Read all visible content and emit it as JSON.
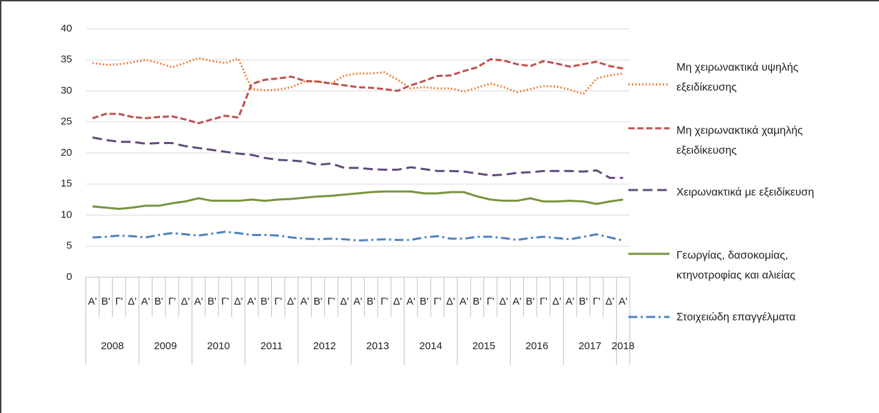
{
  "chart_data": {
    "type": "line",
    "categories": [
      "Α'",
      "Β'",
      "Γ'",
      "Δ'",
      "Α'",
      "Β'",
      "Γ'",
      "Δ'",
      "Α'",
      "Β'",
      "Γ'",
      "Δ'",
      "Α'",
      "Β'",
      "Γ'",
      "Δ'",
      "Α'",
      "Β'",
      "Γ'",
      "Δ'",
      "Α'",
      "Β'",
      "Γ'",
      "Δ'",
      "Α'",
      "Β'",
      "Γ'",
      "Δ'",
      "Α'",
      "Β'",
      "Γ'",
      "Δ'",
      "Α'",
      "Β'",
      "Γ'",
      "Δ'",
      "Α'",
      "Β'",
      "Γ'",
      "Δ'",
      "Α'"
    ],
    "years": [
      "2008",
      "2009",
      "2010",
      "2011",
      "2012",
      "2013",
      "2014",
      "2015",
      "2016",
      "2017",
      "2018"
    ],
    "ylim": [
      0,
      40
    ],
    "yticks": [
      0,
      5,
      10,
      15,
      20,
      25,
      30,
      35,
      40
    ],
    "grid": true,
    "series": [
      {
        "name": "Μη χειρωνακτικά υψηλής εξειδίκευσης",
        "color": "#ed7d31",
        "dash": "dotted",
        "values": [
          34.5,
          34.2,
          34.3,
          34.6,
          35.0,
          34.5,
          33.8,
          34.5,
          35.3,
          34.8,
          34.5,
          35.2,
          30.3,
          30.1,
          30.2,
          30.6,
          31.5,
          31.5,
          31.2,
          32.5,
          32.8,
          32.8,
          33.0,
          31.8,
          30.4,
          30.6,
          30.4,
          30.4,
          29.9,
          30.5,
          31.2,
          30.6,
          29.8,
          30.3,
          30.8,
          30.7,
          30.2,
          29.5,
          32.0,
          32.5,
          32.8
        ]
      },
      {
        "name": "Μη χειρωνακτικά χαμηλής εξειδίκευσης",
        "color": "#c0504d",
        "dash": "dashed",
        "values": [
          25.6,
          26.3,
          26.3,
          25.8,
          25.6,
          25.8,
          25.9,
          25.4,
          24.8,
          25.4,
          26.0,
          25.7,
          31.1,
          31.8,
          32.0,
          32.3,
          31.6,
          31.5,
          31.2,
          30.9,
          30.6,
          30.5,
          30.3,
          30.0,
          30.9,
          31.6,
          32.4,
          32.5,
          33.2,
          33.8,
          35.1,
          34.9,
          34.3,
          34.0,
          34.8,
          34.4,
          33.9,
          34.3,
          34.7,
          34.0,
          33.6
        ]
      },
      {
        "name": "Χειρωνακτικά με εξειδίκευση",
        "color": "#604a7b",
        "dash": "longdash",
        "values": [
          22.5,
          22.1,
          21.8,
          21.8,
          21.5,
          21.6,
          21.6,
          21.1,
          20.8,
          20.5,
          20.2,
          19.9,
          19.7,
          19.2,
          18.9,
          18.8,
          18.6,
          18.1,
          18.3,
          17.6,
          17.6,
          17.4,
          17.3,
          17.3,
          17.7,
          17.4,
          17.1,
          17.1,
          17.0,
          16.7,
          16.4,
          16.5,
          16.8,
          16.9,
          17.1,
          17.1,
          17.1,
          17.0,
          17.2,
          16.0,
          16.0
        ]
      },
      {
        "name": "Γεωργίας, δασοκομίας, κτηνοτροφίας και αλιείας",
        "color": "#77933c",
        "dash": "solid",
        "values": [
          11.4,
          11.2,
          11.0,
          11.2,
          11.5,
          11.5,
          11.9,
          12.2,
          12.7,
          12.3,
          12.3,
          12.3,
          12.5,
          12.3,
          12.5,
          12.6,
          12.8,
          13.0,
          13.1,
          13.3,
          13.5,
          13.7,
          13.8,
          13.8,
          13.8,
          13.5,
          13.5,
          13.7,
          13.7,
          13.0,
          12.5,
          12.3,
          12.3,
          12.7,
          12.2,
          12.2,
          12.3,
          12.2,
          11.8,
          12.2,
          12.5
        ]
      },
      {
        "name": "Στοιχειώδη επαγγέλματα",
        "color": "#4f81bd",
        "dash": "dashdot",
        "values": [
          6.4,
          6.5,
          6.7,
          6.6,
          6.4,
          6.8,
          7.1,
          6.9,
          6.7,
          7.0,
          7.3,
          7.1,
          6.8,
          6.8,
          6.7,
          6.4,
          6.2,
          6.1,
          6.2,
          6.1,
          5.9,
          6.0,
          6.1,
          6.0,
          6.0,
          6.4,
          6.6,
          6.2,
          6.2,
          6.5,
          6.5,
          6.3,
          6.0,
          6.3,
          6.5,
          6.3,
          6.1,
          6.5,
          6.9,
          6.4,
          5.9
        ]
      }
    ]
  }
}
